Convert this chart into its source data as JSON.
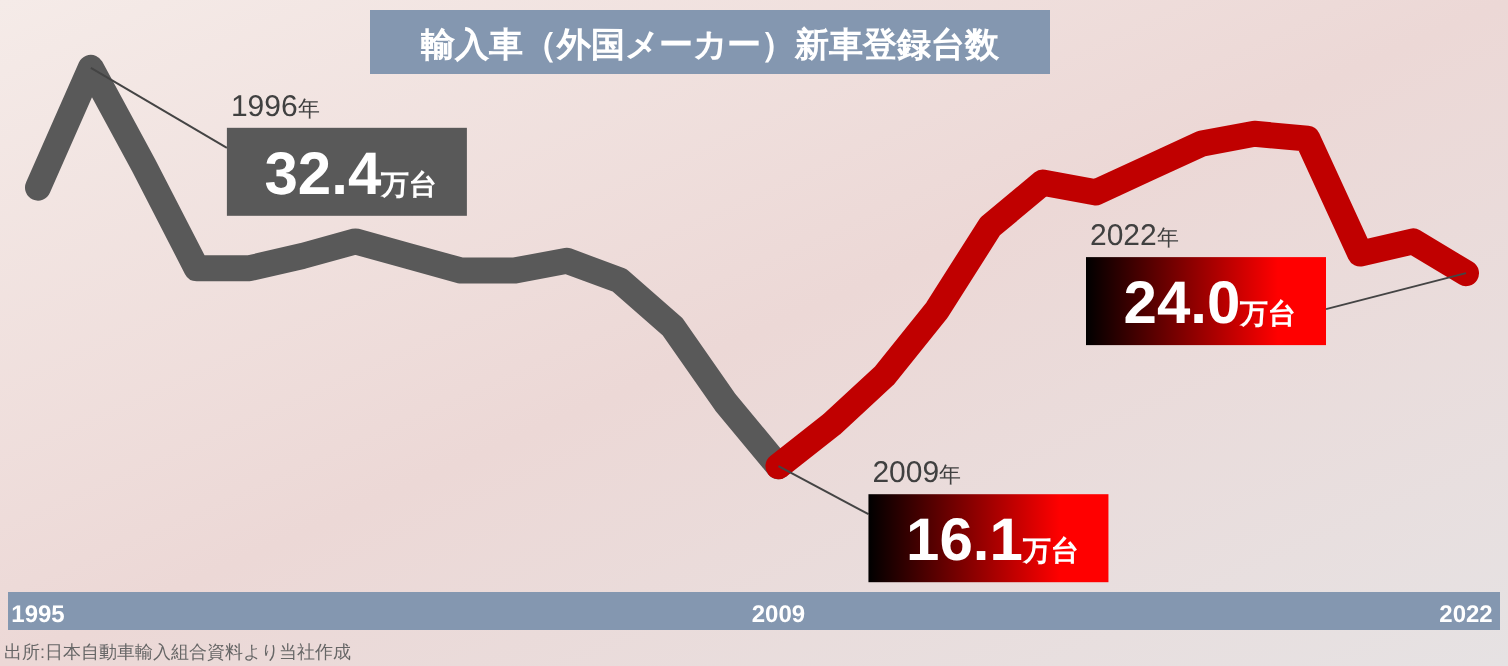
{
  "chart_data": {
    "type": "line",
    "title": "輸入車（外国メーカー）新車登録台数",
    "xlim": [
      1995,
      2022
    ],
    "xticks": [
      1995,
      2009,
      2022
    ],
    "series": [
      {
        "color": "#595959",
        "x": [
          1995,
          1996,
          1997,
          1998,
          1999,
          2000,
          2001,
          2002,
          2003,
          2004,
          2005,
          2006,
          2007,
          2008,
          2009
        ],
        "values": [
          27.5,
          32.4,
          28.4,
          24.2,
          24.2,
          24.7,
          25.3,
          24.7,
          24.1,
          24.1,
          24.5,
          23.7,
          21.8,
          18.7,
          16.1
        ],
        "value_labels": [
          null,
          "32.4万台",
          null,
          null,
          null,
          null,
          null,
          null,
          null,
          null,
          null,
          null,
          null,
          null,
          null
        ]
      },
      {
        "color": "#c00000",
        "x": [
          2009,
          2010,
          2011,
          2012,
          2013,
          2014,
          2015,
          2016,
          2017,
          2018,
          2019,
          2020,
          2021,
          2022
        ],
        "values": [
          16.1,
          17.8,
          19.8,
          22.5,
          25.9,
          27.7,
          27.3,
          28.3,
          29.3,
          29.7,
          29.5,
          24.8,
          25.3,
          24.0
        ],
        "value_labels": [
          "16.1万台",
          null,
          null,
          null,
          null,
          null,
          null,
          null,
          null,
          null,
          null,
          null,
          null,
          "24.0万台"
        ]
      }
    ],
    "annotations": [
      "1996年",
      "2009年",
      "2022年",
      "出所:日本自動車輸入組合資料より当社作成"
    ]
  }
}
